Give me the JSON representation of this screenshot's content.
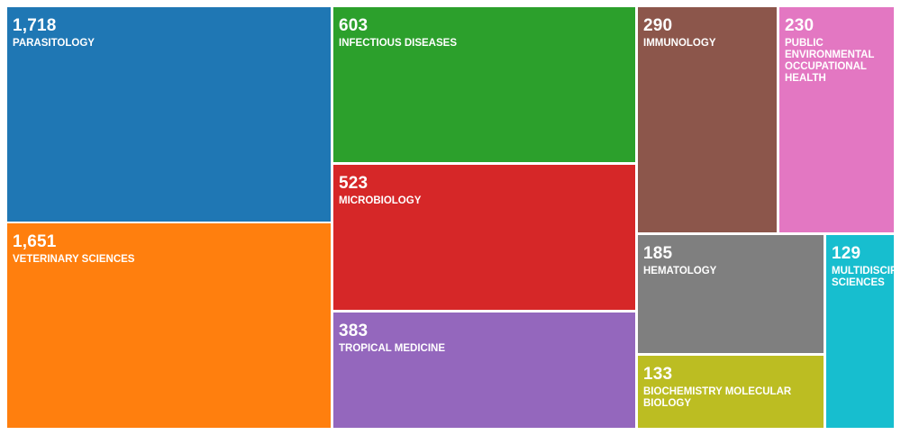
{
  "chart_data": {
    "type": "treemap",
    "title": "",
    "series": [
      {
        "label": "PARASITOLOGY",
        "value_text": "1,718",
        "value": 1718,
        "color": "#1f77b4"
      },
      {
        "label": "VETERINARY SCIENCES",
        "value_text": "1,651",
        "value": 1651,
        "color": "#ff7f0e"
      },
      {
        "label": "INFECTIOUS DISEASES",
        "value_text": "603",
        "value": 603,
        "color": "#2ca02c"
      },
      {
        "label": "MICROBIOLOGY",
        "value_text": "523",
        "value": 523,
        "color": "#d62728"
      },
      {
        "label": "TROPICAL MEDICINE",
        "value_text": "383",
        "value": 383,
        "color": "#9467bd"
      },
      {
        "label": "IMMUNOLOGY",
        "value_text": "290",
        "value": 290,
        "color": "#8c564b"
      },
      {
        "label": "PUBLIC ENVIRONMENTAL OCCUPATIONAL HEALTH",
        "value_text": "230",
        "value": 230,
        "color": "#e377c2"
      },
      {
        "label": "HEMATOLOGY",
        "value_text": "185",
        "value": 185,
        "color": "#7f7f7f"
      },
      {
        "label": "BIOCHEMISTRY MOLECULAR BIOLOGY",
        "value_text": "133",
        "value": 133,
        "color": "#bcbd22"
      },
      {
        "label": "MULTIDISCIPLINARY SCIENCES",
        "value_text": "129",
        "value": 129,
        "color": "#17becf"
      }
    ]
  }
}
